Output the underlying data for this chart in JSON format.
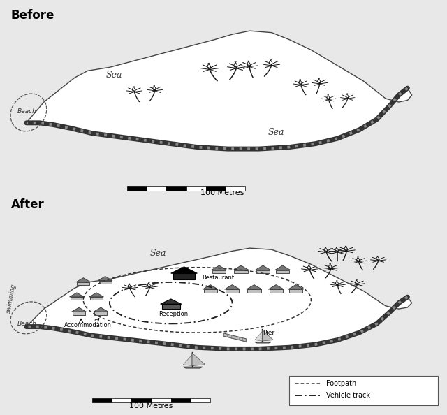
{
  "bg_color": "#e8e8e8",
  "island_fill": "#ffffff",
  "shore_thick_color": "#555555",
  "shore_thin_color": "#444444",
  "before_label": "Before",
  "after_label": "After",
  "sea_label": "Sea",
  "beach_label": "Beach",
  "swimming_label": "swimming",
  "accommodation_label": "Accommodation",
  "restaurant_label": "Restaurant",
  "reception_label": "Reception",
  "pier_label": "Pier",
  "scale_label": "100 Metres",
  "footpath_label": "Footpath",
  "vehicle_track_label": "Vehicle track"
}
